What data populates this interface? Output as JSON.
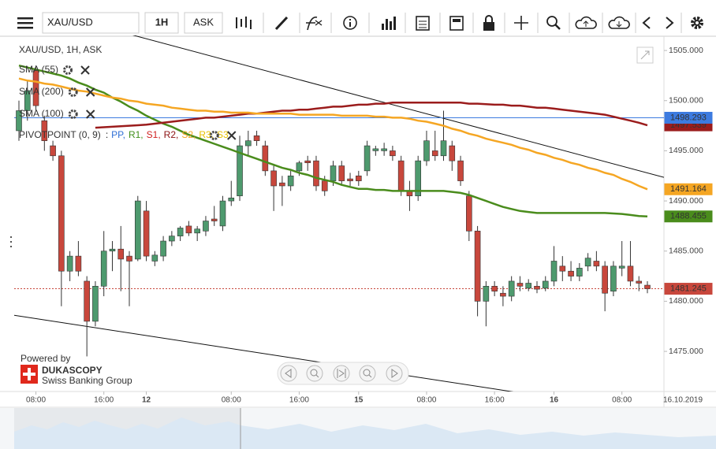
{
  "toolbar": {
    "symbol": "XAU/USD",
    "period": "1H",
    "side": "ASK"
  },
  "branding": {
    "powered_by": "Powered by",
    "name": "DUKASCOPY",
    "tagline": "Swiss Banking Group"
  },
  "chart_data": {
    "type": "candlestick",
    "title": "XAU/USD, 1H, ASK",
    "up_color": "#4e9a6e",
    "down_color": "#c8473c",
    "categories": [
      null,
      null,
      "08:00",
      null,
      null,
      null,
      null,
      null,
      null,
      null,
      "16:00",
      null,
      null,
      null,
      null,
      "12",
      null,
      null,
      null,
      null,
      null,
      null,
      null,
      null,
      null,
      "08:00",
      null,
      null,
      null,
      null,
      null,
      null,
      null,
      "16:00",
      null,
      null,
      null,
      null,
      null,
      null,
      "15",
      null,
      null,
      null,
      null,
      null,
      null,
      null,
      "08:00",
      null,
      null,
      null,
      null,
      null,
      null,
      null,
      "16:00",
      null,
      null,
      null,
      null,
      null,
      null,
      "16",
      null,
      null,
      null,
      null,
      null,
      null,
      null,
      "08:00",
      null,
      null,
      null
    ],
    "date_label": "16.10.2019",
    "open": [
      1497,
      1499,
      1503,
      1498,
      1495.5,
      1494.5,
      1483,
      1484.5,
      1482,
      1478,
      1481.5,
      1485,
      1485.2,
      1484.5,
      1484.2,
      1489,
      1484,
      1484.5,
      1486,
      1486.5,
      1487.5,
      1486.8,
      1487,
      1488.2,
      1487.5,
      1490,
      1490.5,
      1495.5,
      1496.5,
      1495.5,
      1493,
      1491.8,
      1491.5,
      1493,
      1494,
      1494,
      1492,
      1492,
      1493.5,
      1492.2,
      1492.5,
      1493,
      1495,
      1495,
      1495,
      1494,
      1491,
      1490.5,
      1494,
      1495,
      1494.5,
      1495.5,
      1494,
      1490.5,
      1487,
      1480,
      1481.5,
      1480.8,
      1480.5,
      1481.8,
      1481.3,
      1481.5,
      1481.3,
      1482,
      1483.5,
      1483,
      1482.5,
      1483.5,
      1484,
      1483.5,
      1481,
      1483.3,
      1483.5,
      1482,
      1481.6
    ],
    "high": [
      1500,
      1502,
      1503.5,
      1498.5,
      1496,
      1495,
      1485,
      1486,
      1482.5,
      1482,
      1487,
      1486,
      1487.5,
      1485,
      1490.5,
      1490,
      1485,
      1486.5,
      1487,
      1487.5,
      1488,
      1487.5,
      1488.5,
      1489.5,
      1490.5,
      1492,
      1496.5,
      1497,
      1497,
      1496,
      1493.5,
      1492.5,
      1493,
      1494,
      1494.5,
      1494.5,
      1492.5,
      1494,
      1494,
      1492.8,
      1493,
      1496,
      1495.5,
      1495.8,
      1495.5,
      1494.5,
      1492,
      1494.5,
      1497,
      1497,
      1499,
      1496,
      1494.5,
      1491,
      1487.5,
      1482,
      1482,
      1481.5,
      1482.5,
      1482.5,
      1482.2,
      1482,
      1482.5,
      1485.5,
      1484.5,
      1484,
      1483.8,
      1484.8,
      1485,
      1484,
      1484,
      1486,
      1486,
      1482.5,
      1482
    ],
    "low": [
      1496,
      1498,
      1499,
      1495,
      1494,
      1479.5,
      1482,
      1482.5,
      1474.5,
      1477.5,
      1480.5,
      1483,
      1481,
      1479.5,
      1484,
      1484,
      1483.5,
      1484,
      1485.5,
      1486,
      1486.5,
      1486,
      1486.5,
      1487.5,
      1487,
      1489.5,
      1490,
      1494.5,
      1495.5,
      1492.5,
      1489,
      1489.5,
      1491,
      1492.5,
      1493,
      1491,
      1490.5,
      1491.5,
      1491.5,
      1491.5,
      1491.5,
      1492.5,
      1494.5,
      1494.5,
      1494,
      1490.5,
      1489,
      1490,
      1493.5,
      1494,
      1494,
      1493,
      1491.5,
      1486,
      1478.5,
      1477.5,
      1480.5,
      1479.5,
      1480,
      1481,
      1481,
      1480.8,
      1481,
      1481.5,
      1482,
      1482,
      1482,
      1483,
      1483,
      1479,
      1480.5,
      1482.5,
      1481.5,
      1481,
      1480.8
    ],
    "close": [
      1499,
      1501,
      1499.5,
      1496,
      1494.5,
      1483,
      1484.5,
      1483,
      1478,
      1481.5,
      1485,
      1485.2,
      1484.2,
      1484,
      1490,
      1484.5,
      1484.6,
      1486,
      1486.5,
      1487.3,
      1486.8,
      1487.2,
      1488,
      1488,
      1490,
      1490.3,
      1495.5,
      1496,
      1496,
      1493,
      1491.5,
      1491.5,
      1492.5,
      1493.8,
      1493.8,
      1491.5,
      1491,
      1493.5,
      1492,
      1492,
      1492,
      1495.5,
      1495.2,
      1495.2,
      1494.5,
      1491,
      1490.5,
      1494,
      1496,
      1494.5,
      1496,
      1494,
      1492,
      1487,
      1480,
      1481.5,
      1481,
      1480.5,
      1482,
      1481.5,
      1481.8,
      1481.2,
      1482,
      1484,
      1483,
      1482.5,
      1483.3,
      1484.3,
      1483.5,
      1480.8,
      1483.5,
      1483.5,
      1482,
      1481.8,
      1481.245
    ],
    "series": [
      {
        "name": "SMA (55)",
        "color": "#4a8c1c",
        "values": [
          1503.5,
          1503.3,
          1503.1,
          1502.9,
          1502.7,
          1502.5,
          1502.2,
          1501.8,
          1501.5,
          1501.1,
          1500.8,
          1500.3,
          1499.9,
          1499.4,
          1499.0,
          1498.5,
          1498.1,
          1497.7,
          1497.4,
          1497.0,
          1496.6,
          1496.3,
          1496.0,
          1495.7,
          1495.4,
          1495.1,
          1494.8,
          1494.5,
          1494.2,
          1493.9,
          1493.6,
          1493.3,
          1493.1,
          1492.8,
          1492.6,
          1492.3,
          1492.1,
          1491.9,
          1491.6,
          1491.4,
          1491.2,
          1491.2,
          1491.1,
          1491.1,
          1491.0,
          1491.0,
          1491.0,
          1491.0,
          1491.0,
          1491.0,
          1491.0,
          1490.9,
          1490.8,
          1490.6,
          1490.3,
          1490.0,
          1489.7,
          1489.4,
          1489.2,
          1489.0,
          1488.9,
          1488.8,
          1488.8,
          1488.8,
          1488.8,
          1488.8,
          1488.8,
          1488.8,
          1488.8,
          1488.8,
          1488.75,
          1488.7,
          1488.6,
          1488.5,
          1488.455
        ]
      },
      {
        "name": "SMA (200)",
        "color": "#9b1c1c",
        "values": [
          null,
          null,
          null,
          null,
          null,
          null,
          null,
          null,
          null,
          1497.3,
          1497.35,
          1497.4,
          1497.45,
          1497.5,
          1497.55,
          1497.6,
          1497.7,
          1497.8,
          1497.9,
          1498.0,
          1498.1,
          1498.2,
          1498.3,
          1498.3,
          1498.4,
          1498.5,
          1498.6,
          1498.7,
          1498.7,
          1498.8,
          1498.9,
          1499.0,
          1499.0,
          1499.1,
          1499.1,
          1499.2,
          1499.3,
          1499.4,
          1499.4,
          1499.5,
          1499.6,
          1499.6,
          1499.7,
          1499.7,
          1499.8,
          1499.8,
          1499.8,
          1499.8,
          1499.8,
          1499.8,
          1499.8,
          1499.8,
          1499.8,
          1499.7,
          1499.7,
          1499.65,
          1499.6,
          1499.6,
          1499.5,
          1499.5,
          1499.4,
          1499.3,
          1499.3,
          1499.2,
          1499.1,
          1499.0,
          1498.9,
          1498.8,
          1498.7,
          1498.6,
          1498.4,
          1498.2,
          1498.0,
          1497.8,
          1497.539
        ]
      },
      {
        "name": "SMA (100)",
        "color": "#f5a623",
        "values": [
          1502.2,
          1502.0,
          1501.9,
          1501.7,
          1501.6,
          1501.4,
          1501.2,
          1501.0,
          1500.9,
          1500.7,
          1500.5,
          1500.3,
          1500.2,
          1500.0,
          1499.9,
          1499.7,
          1499.6,
          1499.5,
          1499.3,
          1499.2,
          1499.1,
          1499.0,
          1499.0,
          1498.9,
          1498.9,
          1498.8,
          1498.8,
          1498.8,
          1498.7,
          1498.7,
          1498.7,
          1498.7,
          1498.7,
          1498.6,
          1498.6,
          1498.6,
          1498.6,
          1498.6,
          1498.5,
          1498.5,
          1498.5,
          1498.5,
          1498.4,
          1498.4,
          1498.3,
          1498.3,
          1498.2,
          1498.0,
          1497.9,
          1497.7,
          1497.5,
          1497.2,
          1497.0,
          1496.7,
          1496.5,
          1496.2,
          1496.0,
          1495.8,
          1495.6,
          1495.3,
          1495.1,
          1494.8,
          1494.6,
          1494.3,
          1494.1,
          1493.8,
          1493.6,
          1493.3,
          1493.1,
          1492.8,
          1492.6,
          1492.2,
          1491.9,
          1491.5,
          1491.164
        ]
      }
    ],
    "pivot": {
      "name": "PIVOTPOINT (0, 9)",
      "prefix": ":",
      "lines": [
        {
          "name": "PP,",
          "color": "#2f6fd6"
        },
        {
          "name": "R1,",
          "color": "#3f8f1a"
        },
        {
          "name": "S1,",
          "color": "#d02020"
        },
        {
          "name": "R2,",
          "color": "#8b1010"
        },
        {
          "name": "S2,",
          "color": "#f5a623"
        },
        {
          "name": "R3,",
          "color": "#e8c000"
        },
        {
          "name": "S3",
          "color": "#e8c000"
        }
      ]
    },
    "price_lines": [
      {
        "value": 1498.293,
        "color": "#3d7be0"
      }
    ],
    "trendlines": [
      {
        "start": 1509.7,
        "end": 1492.35
      },
      {
        "start": 1478.6,
        "end": 1468.66
      }
    ],
    "ylim": [
      1471.0,
      1506.5
    ],
    "yticks": [
      {
        "value": 1475,
        "label": "1475.000"
      },
      {
        "value": 1480,
        "label": "1480.000"
      },
      {
        "value": 1485,
        "label": "1485.000"
      },
      {
        "value": 1490,
        "label": "1490.000"
      },
      {
        "value": 1495,
        "label": "1495.000"
      },
      {
        "value": 1500,
        "label": "1500.000"
      },
      {
        "value": 1505,
        "label": "1505.000"
      }
    ]
  }
}
